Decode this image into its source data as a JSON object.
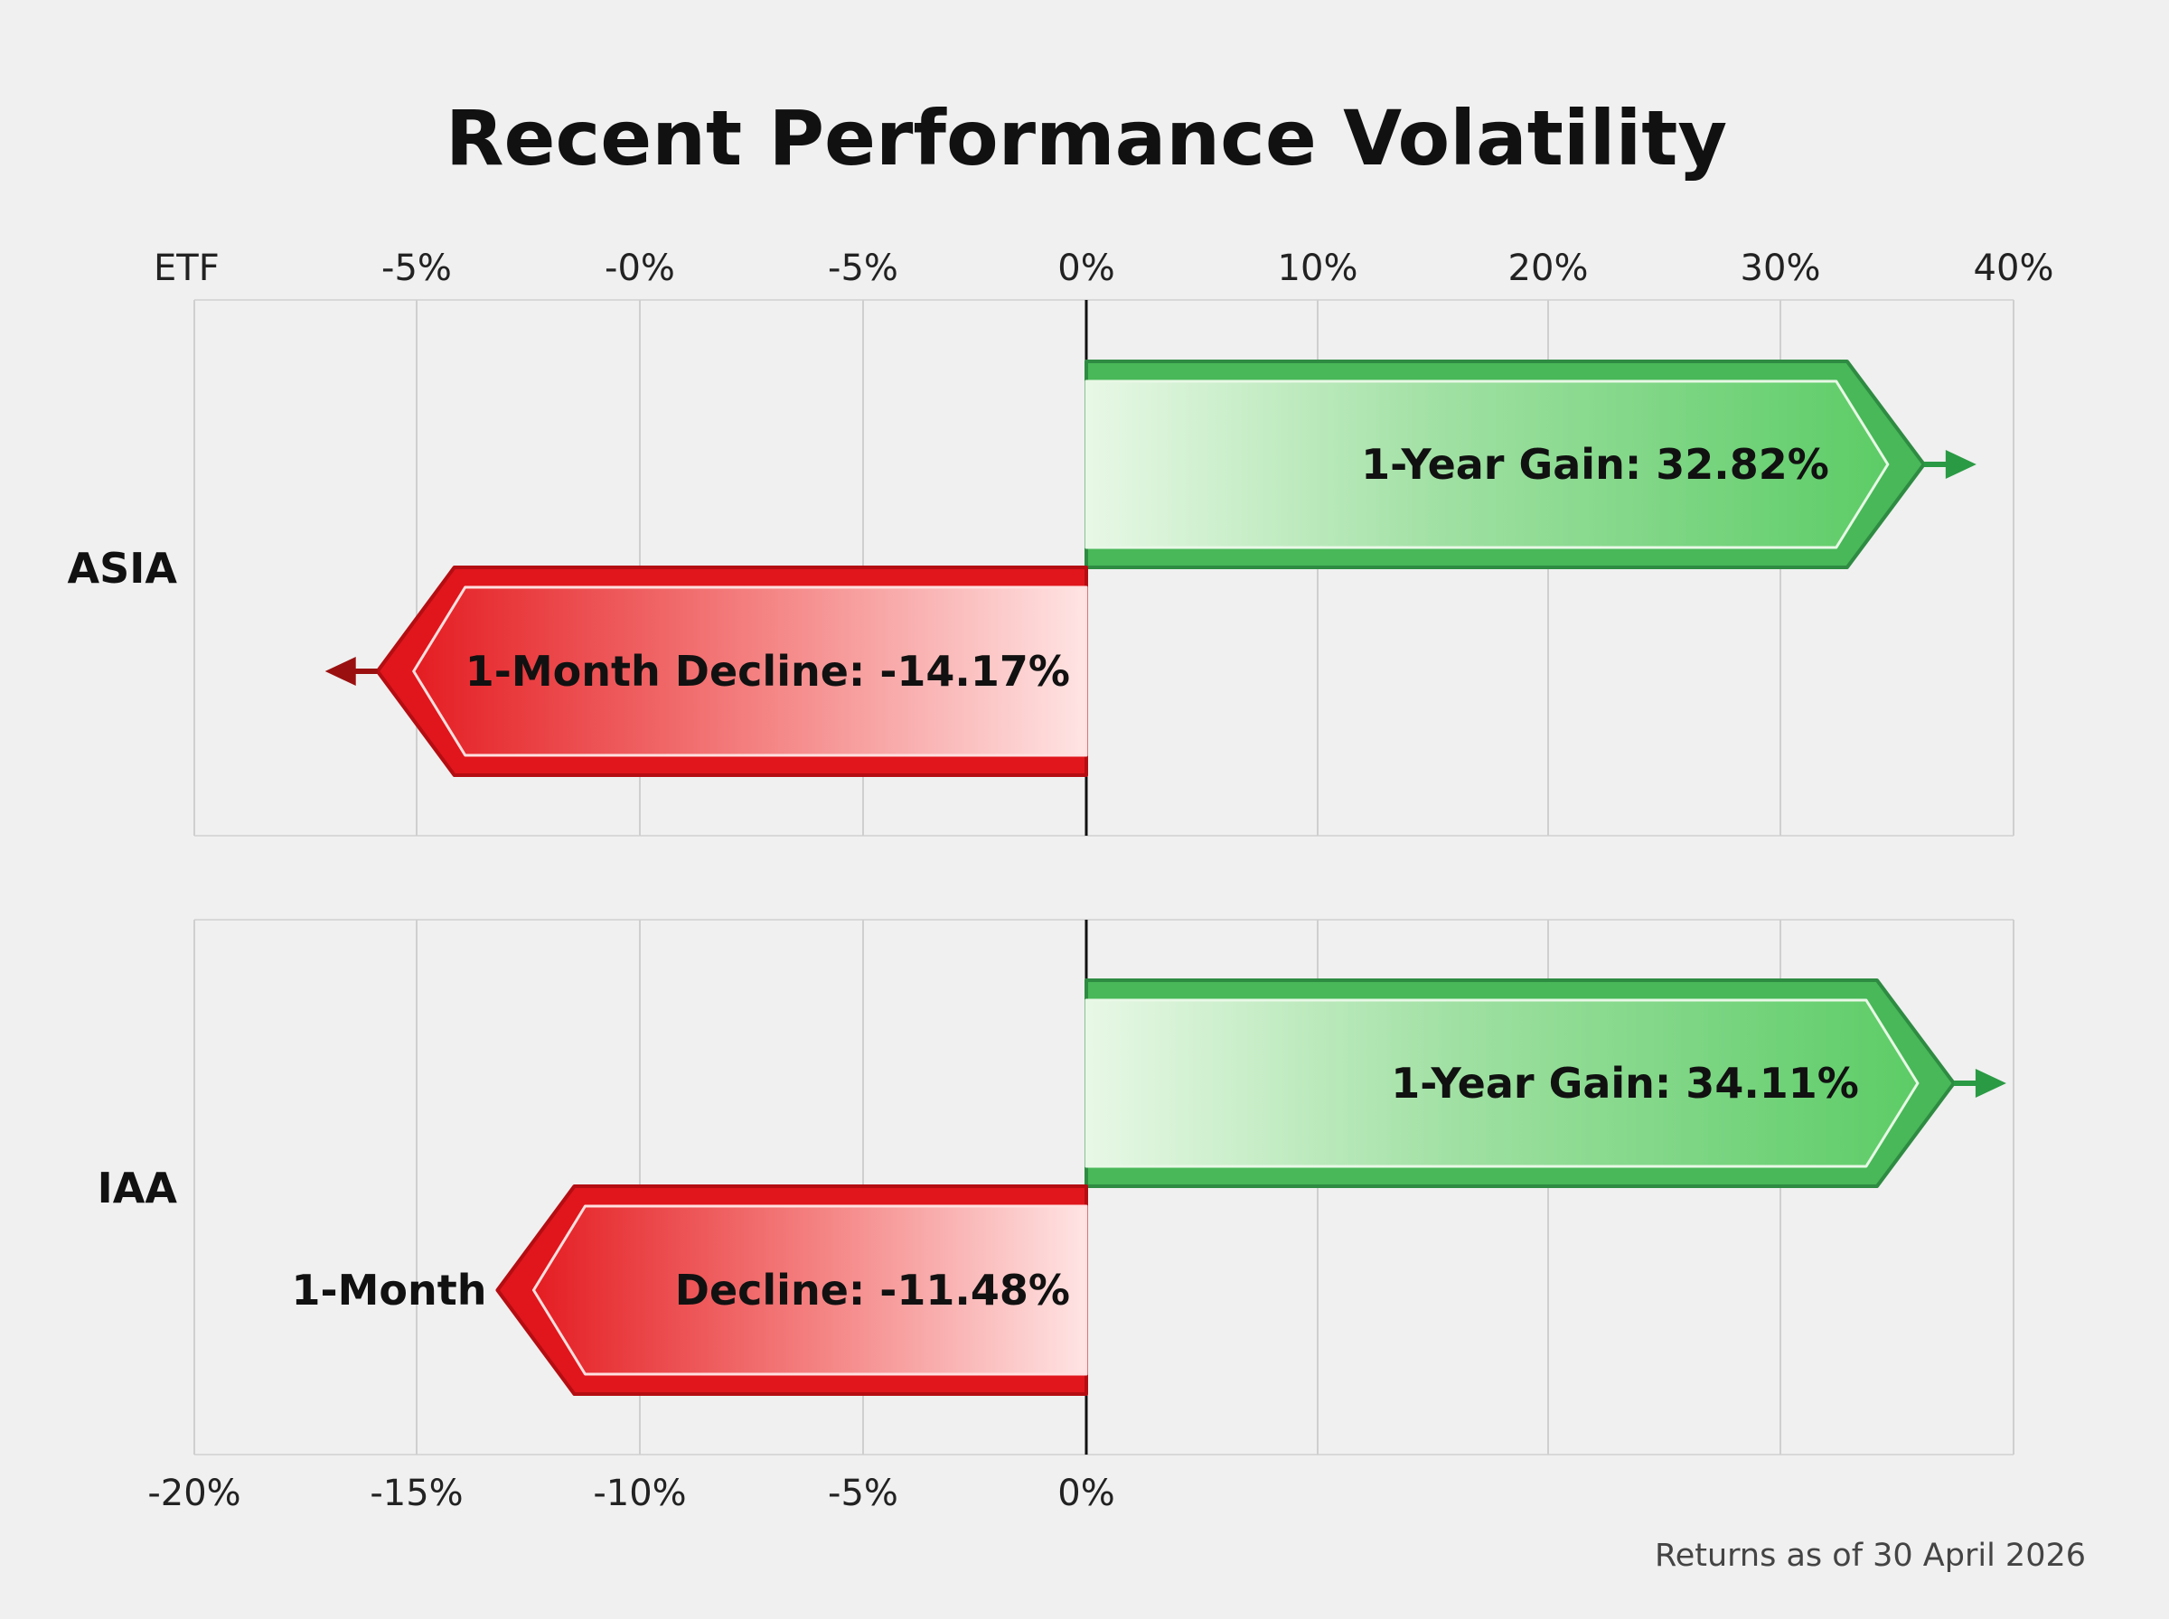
{
  "chart_data": {
    "type": "bar",
    "title": "Recent Performance Volatility",
    "categories": [
      "ASIA",
      "IAA"
    ],
    "series": [
      {
        "name": "1-Year Gain",
        "values": [
          32.82,
          34.11
        ],
        "labels": [
          "1-Year Gain: 32.82%",
          "1-Year Gain: 34.11%"
        ],
        "color": "#4cbb5c"
      },
      {
        "name": "1-Month Decline",
        "values": [
          -14.17,
          -11.48
        ],
        "labels": [
          "1-Month Decline: -14.17%",
          "1-Month Decline: -11.48%"
        ],
        "color": "#e0161c"
      }
    ],
    "split_label_iaa_decline": [
      "1-Month",
      "Decline: -11.48%"
    ],
    "top_axis": {
      "header": "ETF",
      "ticks": [
        "-5%",
        "-0%",
        "-5%",
        "0%",
        "10%",
        "20%",
        "30%",
        "40%"
      ]
    },
    "bottom_axis": {
      "ticks": [
        "-20%",
        "-15%",
        "-10%",
        "-5%",
        "0%"
      ]
    },
    "xlim_negative": [
      -20,
      0
    ],
    "xlim_positive": [
      0,
      40
    ],
    "grid": true,
    "footnote": "Returns as of 30 April 2026"
  }
}
